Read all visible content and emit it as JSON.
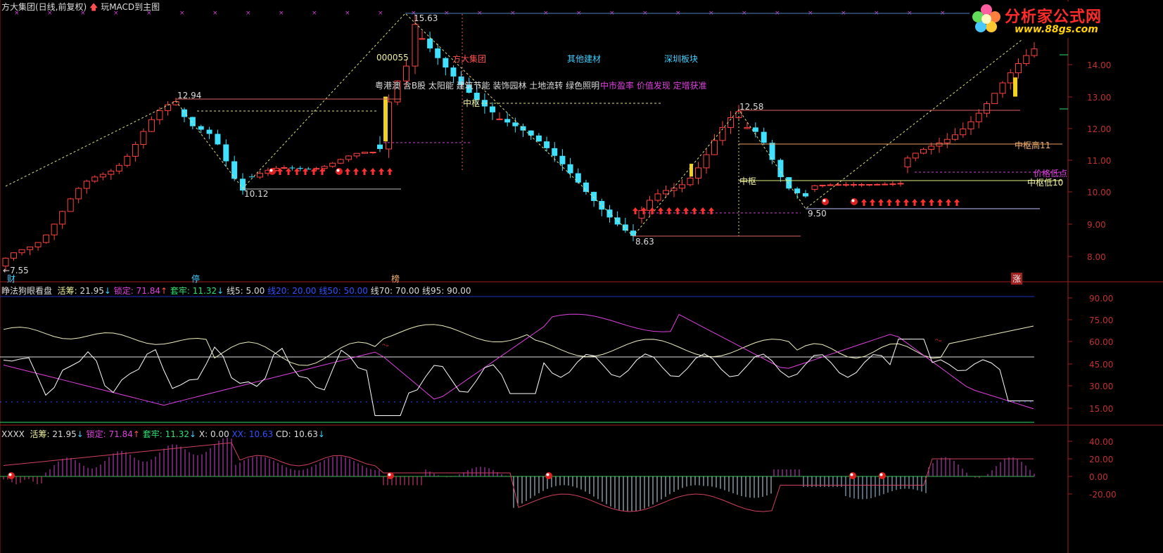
{
  "header": {
    "title": "方大集团(日线,前复权)",
    "macd_link": "玩MACD到主图"
  },
  "main": {
    "price_labels": {
      "high_top": "15.63",
      "high_left": "12.94",
      "low_left": "10.12",
      "high_right": "12.58",
      "low_mid": "8.63",
      "low_right": "9.50",
      "start": "7.55"
    },
    "info": {
      "code": "000055",
      "name": "方大集团",
      "industry": "其他建材",
      "region": "深圳板块",
      "concepts": "粤港澳 含B股 太阳能 建筑节能 装饰园林 土地流转 绿色照明",
      "concepts2": "中市盈率 价值发现 定增获准"
    },
    "zone_labels": {
      "zs1": "中枢",
      "zs2": "中枢",
      "zs_high": "中枢高11",
      "price_low": "价格低点",
      "zs_low": "中枢低10"
    },
    "axis": [
      "14.00",
      "13.00",
      "12.00",
      "11.00",
      "10.00",
      "9.00",
      "8.00"
    ],
    "bottom_marks": [
      "财",
      "停",
      "榜",
      "涨"
    ]
  },
  "panel2": {
    "name": "睁法狗眼看盘",
    "huo_label": "活筹:",
    "huo_value": "21.95",
    "suo_label": "锁定:",
    "suo_value": "71.84",
    "tao_label": "套牢:",
    "tao_value": "11.32",
    "l5": "线5: 5.00",
    "l20": "线20: 20.00",
    "l50": "线50: 50.00",
    "l70": "线70: 70.00",
    "l95": "线95: 90.00",
    "axis": [
      "90.00",
      "75.00",
      "60.00",
      "45.00",
      "30.00",
      "15.00"
    ]
  },
  "panel3": {
    "name": "XXXX",
    "huo_label": "活筹:",
    "huo_value": "21.95",
    "suo_label": "锁定:",
    "suo_value": "71.84",
    "tao_label": "套牢:",
    "tao_value": "11.32",
    "x": "X: 0.00",
    "xx": "XX: 10.63",
    "cd": "CD: 10.63",
    "axis": [
      "40.00",
      "20.00",
      "0.00",
      "-20.00"
    ]
  },
  "logo": {
    "title": "分析家公式网",
    "url": "www.88gs.com"
  },
  "colors": {
    "up": "#ff4040",
    "down": "#40e0ff",
    "k_line": "#f0f0c0",
    "d_line": "#e040e0",
    "j_line": "#ffffff"
  }
}
